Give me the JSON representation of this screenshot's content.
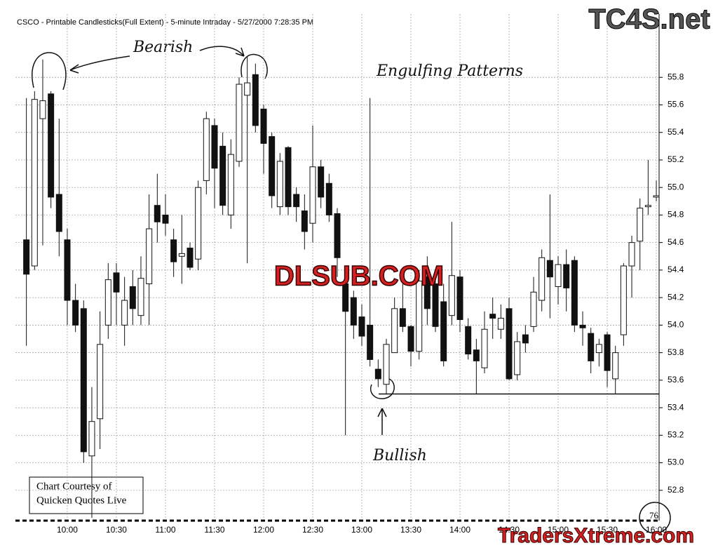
{
  "chart_data": {
    "type": "candlestick",
    "title": "CSCO - Printable Candlesticks(Full Extent) - 5-minute Intraday - 5/27/2000 7:28:35 PM",
    "annotations": {
      "bearish": "Bearish",
      "pattern": "Engulfing Patterns",
      "bullish": "Bullish",
      "credit_line1": "Chart Courtesy of",
      "credit_line2": "Quicken Quotes Live",
      "page": "76"
    },
    "watermarks": [
      "TC4S.net",
      "DLSUB.COM",
      "TradersXtreme.com"
    ],
    "x": [
      575,
      580,
      585,
      590,
      595,
      600,
      605,
      610,
      615,
      620,
      625,
      630,
      635,
      640,
      645,
      650,
      655,
      660,
      665,
      670,
      675,
      680,
      685,
      690,
      695,
      700,
      705,
      710,
      715,
      720,
      725,
      730,
      735,
      740,
      745,
      750,
      755,
      760,
      765,
      770,
      775,
      780,
      785,
      790,
      795,
      800,
      805,
      810,
      815,
      820,
      825,
      830,
      835,
      840,
      845,
      850,
      855,
      860,
      865,
      870,
      875,
      880,
      885,
      890,
      895,
      900,
      905,
      910,
      915,
      920,
      925,
      930,
      935,
      940,
      945,
      950,
      955,
      960
    ],
    "open": [
      54.62,
      54.43,
      55.5,
      55.68,
      54.95,
      54.62,
      54.18,
      54.12,
      53.05,
      53.32,
      54.0,
      54.38,
      54.0,
      54.28,
      54.07,
      54.3,
      54.87,
      54.8,
      54.62,
      54.5,
      54.56,
      54.48,
      55.05,
      55.45,
      55.3,
      54.8,
      55.19,
      55.67,
      55.82,
      55.57,
      55.37,
      54.86,
      55.29,
      54.95,
      54.83,
      54.74,
      55.15,
      55.03,
      54.81,
      54.3,
      54.2,
      54.06,
      54.0,
      53.68,
      53.57,
      53.8,
      54.12,
      53.99,
      53.81,
      54.35,
      54.3,
      54.17,
      54.07,
      54.35,
      53.99,
      53.82,
      53.69,
      54.08,
      53.97,
      54.12,
      53.64,
      53.93,
      53.99,
      54.18,
      54.47,
      54.28,
      54.44,
      54.47,
      54.0,
      53.94,
      53.8,
      53.93,
      53.61,
      53.93,
      54.43,
      54.61,
      54.86,
      54.93
    ],
    "high": [
      55.65,
      55.7,
      55.93,
      55.7,
      55.5,
      54.7,
      54.3,
      54.18,
      53.55,
      54.1,
      54.45,
      54.45,
      54.35,
      54.4,
      54.5,
      54.95,
      55.1,
      54.95,
      54.7,
      54.8,
      54.6,
      55.05,
      55.55,
      55.5,
      55.4,
      55.35,
      55.8,
      55.95,
      55.9,
      55.6,
      55.4,
      55.25,
      55.3,
      55.0,
      54.95,
      55.45,
      55.2,
      55.1,
      54.85,
      54.4,
      54.25,
      54.15,
      55.65,
      53.75,
      53.9,
      54.2,
      54.3,
      54.0,
      54.4,
      54.5,
      54.4,
      54.3,
      54.75,
      54.4,
      54.05,
      53.9,
      54.1,
      54.2,
      54.15,
      54.2,
      53.95,
      54.0,
      54.35,
      54.55,
      54.95,
      54.5,
      54.55,
      54.5,
      54.1,
      53.98,
      53.9,
      53.95,
      53.85,
      54.45,
      54.65,
      54.92,
      55.2,
      55.05
    ],
    "low": [
      53.85,
      54.4,
      54.58,
      54.85,
      54.5,
      54.0,
      53.95,
      53.0,
      52.6,
      53.1,
      53.9,
      54.0,
      53.85,
      54.0,
      54.0,
      54.0,
      54.6,
      54.65,
      54.35,
      54.3,
      54.4,
      54.4,
      54.95,
      54.85,
      54.8,
      54.7,
      55.15,
      54.45,
      55.4,
      55.1,
      54.85,
      54.8,
      54.8,
      54.75,
      54.55,
      54.6,
      54.85,
      54.75,
      54.35,
      53.2,
      53.9,
      53.85,
      53.7,
      53.55,
      53.5,
      53.8,
      53.95,
      53.7,
      53.75,
      54.0,
      53.95,
      53.7,
      54.0,
      53.95,
      53.75,
      53.5,
      53.65,
      53.9,
      53.9,
      53.6,
      53.6,
      53.8,
      53.95,
      54.1,
      54.05,
      54.15,
      54.1,
      53.95,
      53.85,
      53.65,
      53.7,
      53.55,
      53.5,
      53.85,
      54.2,
      54.4,
      54.8,
      54.9
    ],
    "close": [
      54.37,
      55.64,
      55.63,
      54.93,
      54.68,
      54.18,
      54.0,
      53.08,
      53.3,
      53.86,
      54.33,
      54.24,
      54.18,
      54.12,
      54.34,
      54.7,
      54.75,
      54.74,
      54.46,
      54.52,
      54.42,
      55.0,
      55.5,
      55.14,
      54.87,
      55.24,
      55.75,
      55.76,
      55.45,
      55.32,
      54.94,
      55.19,
      54.86,
      54.86,
      54.68,
      55.15,
      54.93,
      54.8,
      54.49,
      54.1,
      54.0,
      53.92,
      53.75,
      53.61,
      53.86,
      54.12,
      53.99,
      53.81,
      54.32,
      54.12,
      53.99,
      53.74,
      54.36,
      54.04,
      53.79,
      53.74,
      53.97,
      54.05,
      54.05,
      53.61,
      53.88,
      53.87,
      54.24,
      54.49,
      54.35,
      54.44,
      54.27,
      54.0,
      53.98,
      53.74,
      53.86,
      53.67,
      53.8,
      54.43,
      54.6,
      54.85,
      54.87,
      54.94
    ],
    "support_level": 53.5,
    "xlim": [
      568.3,
      961.7
    ],
    "xticks": [
      {
        "value": 600,
        "label": "10:00"
      },
      {
        "value": 630,
        "label": "10:30"
      },
      {
        "value": 660,
        "label": "11:00"
      },
      {
        "value": 690,
        "label": "11:30"
      },
      {
        "value": 720,
        "label": "12:00"
      },
      {
        "value": 750,
        "label": "12:30"
      },
      {
        "value": 780,
        "label": "13:00"
      },
      {
        "value": 810,
        "label": "13:30"
      },
      {
        "value": 840,
        "label": "14:00"
      },
      {
        "value": 870,
        "label": "14:30"
      },
      {
        "value": 900,
        "label": "15:00"
      },
      {
        "value": 930,
        "label": "15:30"
      },
      {
        "value": 960,
        "label": "16:00"
      }
    ],
    "ylim": [
      52.59,
      56.26
    ],
    "yticks": [
      52.8,
      {
        "value": 53,
        "label": "53.0"
      },
      53.2,
      53.4,
      53.6,
      53.8,
      {
        "value": 54,
        "label": "54.0"
      },
      54.2,
      54.4,
      54.6,
      54.8,
      {
        "value": 55,
        "label": "55.0"
      },
      55.2,
      55.4,
      55.6,
      55.8
    ],
    "grid": true,
    "up_color": "#ffffff",
    "down_color": "#111111"
  }
}
